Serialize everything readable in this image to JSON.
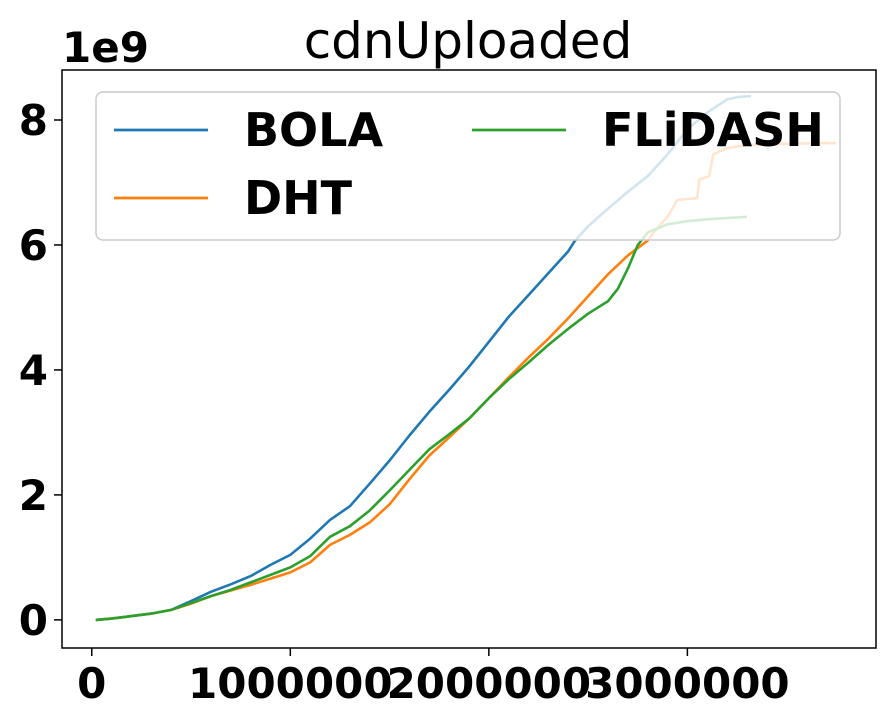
{
  "chart_data": {
    "type": "line",
    "title": "cdnUploaded",
    "y_offset_label": "1e9",
    "xlim": [
      -150000,
      3950000
    ],
    "ylim": [
      -0.45,
      8.8
    ],
    "x_ticks": [
      0,
      1000000,
      2000000,
      3000000
    ],
    "x_tick_labels": [
      "0",
      "1000000",
      "2000000",
      "3000000"
    ],
    "y_ticks": [
      0,
      2,
      4,
      6,
      8
    ],
    "y_tick_labels": [
      "0",
      "2",
      "4",
      "6",
      "8"
    ],
    "grid": false,
    "legend": {
      "placement": "top",
      "columns": 2
    },
    "series": [
      {
        "name": "BOLA",
        "color": "#1f77b4",
        "points": [
          [
            20000,
            0
          ],
          [
            100000,
            0.02
          ],
          [
            200000,
            0.06
          ],
          [
            300000,
            0.1
          ],
          [
            400000,
            0.16
          ],
          [
            500000,
            0.3
          ],
          [
            600000,
            0.45
          ],
          [
            700000,
            0.57
          ],
          [
            800000,
            0.7
          ],
          [
            900000,
            0.88
          ],
          [
            1000000,
            1.04
          ],
          [
            1100000,
            1.3
          ],
          [
            1200000,
            1.6
          ],
          [
            1300000,
            1.82
          ],
          [
            1400000,
            2.18
          ],
          [
            1500000,
            2.55
          ],
          [
            1600000,
            2.95
          ],
          [
            1700000,
            3.33
          ],
          [
            1800000,
            3.68
          ],
          [
            1900000,
            4.05
          ],
          [
            2000000,
            4.45
          ],
          [
            2100000,
            4.85
          ],
          [
            2200000,
            5.2
          ],
          [
            2300000,
            5.55
          ],
          [
            2400000,
            5.9
          ],
          [
            2430000,
            6.05
          ],
          [
            2500000,
            6.3
          ],
          [
            2600000,
            6.58
          ],
          [
            2700000,
            6.85
          ],
          [
            2800000,
            7.1
          ],
          [
            2900000,
            7.45
          ],
          [
            3000000,
            7.85
          ],
          [
            3100000,
            8.12
          ],
          [
            3200000,
            8.33
          ],
          [
            3260000,
            8.37
          ],
          [
            3320000,
            8.38
          ]
        ]
      },
      {
        "name": "DHT",
        "color": "#ff7f0e",
        "points": [
          [
            20000,
            0
          ],
          [
            100000,
            0.02
          ],
          [
            200000,
            0.06
          ],
          [
            300000,
            0.1
          ],
          [
            400000,
            0.16
          ],
          [
            500000,
            0.26
          ],
          [
            600000,
            0.38
          ],
          [
            700000,
            0.47
          ],
          [
            800000,
            0.56
          ],
          [
            900000,
            0.66
          ],
          [
            1000000,
            0.76
          ],
          [
            1100000,
            0.92
          ],
          [
            1200000,
            1.2
          ],
          [
            1300000,
            1.36
          ],
          [
            1400000,
            1.56
          ],
          [
            1500000,
            1.85
          ],
          [
            1600000,
            2.25
          ],
          [
            1700000,
            2.63
          ],
          [
            1800000,
            2.92
          ],
          [
            1900000,
            3.22
          ],
          [
            2000000,
            3.55
          ],
          [
            2100000,
            3.88
          ],
          [
            2200000,
            4.2
          ],
          [
            2300000,
            4.5
          ],
          [
            2400000,
            4.83
          ],
          [
            2500000,
            5.18
          ],
          [
            2600000,
            5.53
          ],
          [
            2700000,
            5.83
          ],
          [
            2800000,
            6.07
          ],
          [
            2830000,
            6.2
          ],
          [
            2900000,
            6.45
          ],
          [
            2950000,
            6.72
          ],
          [
            3050000,
            6.75
          ],
          [
            3060000,
            7.05
          ],
          [
            3110000,
            7.1
          ],
          [
            3130000,
            7.45
          ],
          [
            3200000,
            7.55
          ],
          [
            3300000,
            7.6
          ],
          [
            3500000,
            7.62
          ],
          [
            3750000,
            7.63
          ]
        ]
      },
      {
        "name": "FLiDASH",
        "color": "#2ca02c",
        "points": [
          [
            20000,
            0
          ],
          [
            100000,
            0.02
          ],
          [
            200000,
            0.06
          ],
          [
            300000,
            0.1
          ],
          [
            400000,
            0.16
          ],
          [
            500000,
            0.27
          ],
          [
            600000,
            0.38
          ],
          [
            700000,
            0.48
          ],
          [
            800000,
            0.6
          ],
          [
            900000,
            0.72
          ],
          [
            1000000,
            0.84
          ],
          [
            1100000,
            1.02
          ],
          [
            1200000,
            1.33
          ],
          [
            1300000,
            1.5
          ],
          [
            1400000,
            1.75
          ],
          [
            1500000,
            2.07
          ],
          [
            1600000,
            2.4
          ],
          [
            1700000,
            2.73
          ],
          [
            1800000,
            2.97
          ],
          [
            1900000,
            3.22
          ],
          [
            2000000,
            3.55
          ],
          [
            2100000,
            3.85
          ],
          [
            2200000,
            4.12
          ],
          [
            2300000,
            4.4
          ],
          [
            2400000,
            4.66
          ],
          [
            2500000,
            4.9
          ],
          [
            2600000,
            5.1
          ],
          [
            2650000,
            5.3
          ],
          [
            2700000,
            5.62
          ],
          [
            2750000,
            6.0
          ],
          [
            2800000,
            6.2
          ],
          [
            2900000,
            6.33
          ],
          [
            3000000,
            6.38
          ],
          [
            3100000,
            6.41
          ],
          [
            3200000,
            6.43
          ],
          [
            3300000,
            6.45
          ]
        ]
      }
    ]
  }
}
